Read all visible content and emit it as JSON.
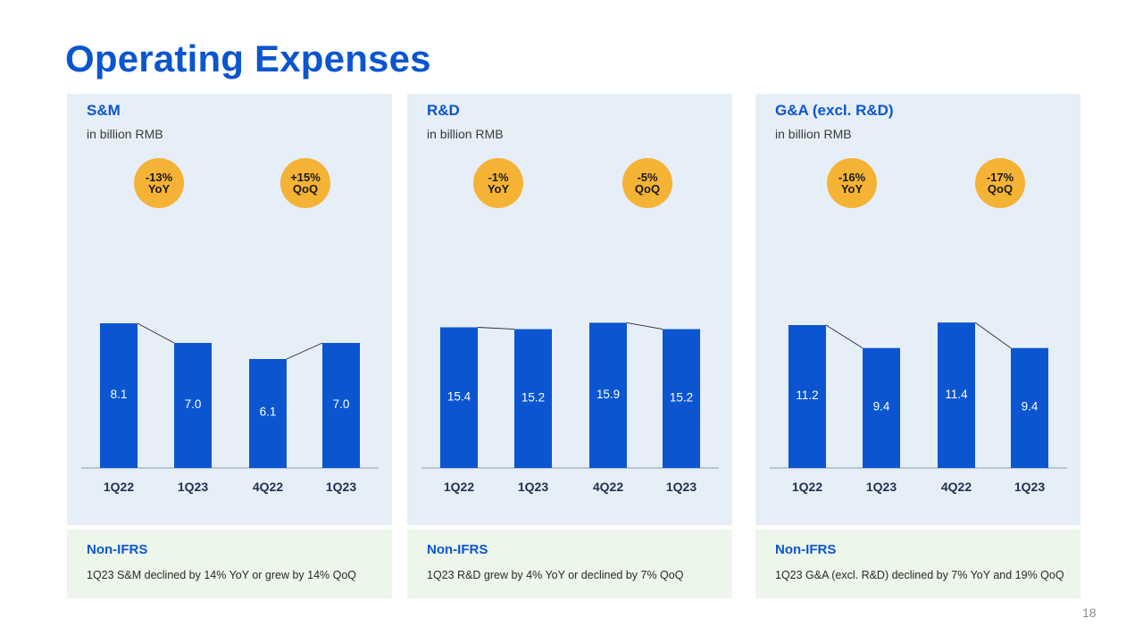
{
  "page": {
    "title": "Operating Expenses",
    "page_number": "18"
  },
  "colors": {
    "bar": "#0b55d0",
    "panel_bg": "#e6eef8",
    "note_bg": "#edf6ea",
    "badge": "#f5b335",
    "title": "#0b55d0"
  },
  "panels": [
    {
      "title": "S&M",
      "unit": "in billion RMB",
      "badges": [
        {
          "line1": "-13%",
          "line2": "YoY"
        },
        {
          "line1": "+15%",
          "line2": "QoQ"
        }
      ],
      "note": {
        "title": "Non-IFRS",
        "text": "1Q23 S&M declined by 14% YoY or grew by 14% QoQ"
      }
    },
    {
      "title": "R&D",
      "unit": "in billion RMB",
      "badges": [
        {
          "line1": "-1%",
          "line2": "YoY"
        },
        {
          "line1": "-5%",
          "line2": "QoQ"
        }
      ],
      "note": {
        "title": "Non-IFRS",
        "text": "1Q23 R&D grew by 4% YoY or declined by 7% QoQ"
      }
    },
    {
      "title": "G&A (excl. R&D)",
      "unit": "in billion RMB",
      "badges": [
        {
          "line1": "-16%",
          "line2": "YoY"
        },
        {
          "line1": "-17%",
          "line2": "QoQ"
        }
      ],
      "note": {
        "title": "Non-IFRS",
        "text": "1Q23 G&A (excl. R&D) declined by 7% YoY and 19% QoQ"
      }
    }
  ],
  "chart_data": [
    {
      "type": "bar",
      "title": "S&M",
      "ylabel": "in billion RMB",
      "categories": [
        "1Q22",
        "1Q23",
        "4Q22",
        "1Q23"
      ],
      "values": [
        8.1,
        7.0,
        6.1,
        7.0
      ],
      "labels": [
        "8.1",
        "7.0",
        "6.1",
        "7.0"
      ],
      "pairs": [
        [
          0,
          1
        ],
        [
          2,
          3
        ]
      ],
      "ylim": [
        0,
        9
      ]
    },
    {
      "type": "bar",
      "title": "R&D",
      "ylabel": "in billion RMB",
      "categories": [
        "1Q22",
        "1Q23",
        "4Q22",
        "1Q23"
      ],
      "values": [
        15.4,
        15.2,
        15.9,
        15.2
      ],
      "labels": [
        "15.4",
        "15.2",
        "15.9",
        "15.2"
      ],
      "pairs": [
        [
          0,
          1
        ],
        [
          2,
          3
        ]
      ],
      "ylim": [
        0,
        17.6
      ]
    },
    {
      "type": "bar",
      "title": "G&A (excl. R&D)",
      "ylabel": "in billion RMB",
      "categories": [
        "1Q22",
        "1Q23",
        "4Q22",
        "1Q23"
      ],
      "values": [
        11.2,
        9.4,
        11.4,
        9.4
      ],
      "labels": [
        "11.2",
        "9.4",
        "11.4",
        "9.4"
      ],
      "pairs": [
        [
          0,
          1
        ],
        [
          2,
          3
        ]
      ],
      "ylim": [
        0,
        12.6
      ]
    }
  ]
}
